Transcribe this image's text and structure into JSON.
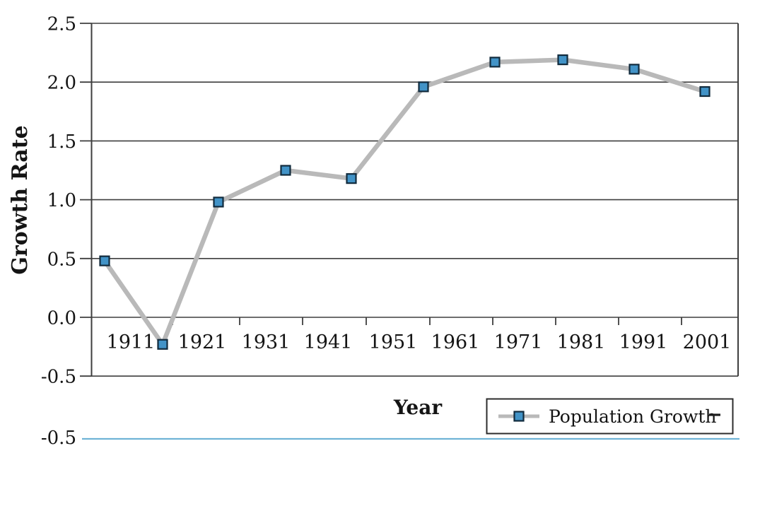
{
  "chart_data": {
    "type": "line",
    "title": "",
    "xlabel": "Year",
    "ylabel": "Growth Rate",
    "categories": [
      "1911",
      "1921",
      "1931",
      "1941",
      "1951",
      "1961",
      "1971",
      "1981",
      "1991",
      "2001"
    ],
    "series": [
      {
        "name": "Population Growth",
        "values": [
          0.48,
          -0.23,
          0.98,
          1.25,
          1.18,
          1.96,
          2.17,
          2.19,
          2.11,
          1.92
        ]
      }
    ],
    "ylim": [
      -0.5,
      2.5
    ],
    "ytick_labels": [
      "2.5",
      "2.0",
      "1.5",
      "1.0",
      "0.5",
      "0.0",
      "-0.5"
    ],
    "grid": "horizontal",
    "legend_position": "bottom-right-outside",
    "legend_extra_symbol": "dash",
    "colors": {
      "marker_fill": "#4293c7",
      "marker_border": "#122b3d",
      "line": "#b9b9b9",
      "axis": "#3e3e3e",
      "text": "#141414",
      "footer_rule": "#6fb3d6"
    }
  },
  "footer": {
    "stray_label": "-0.5"
  }
}
